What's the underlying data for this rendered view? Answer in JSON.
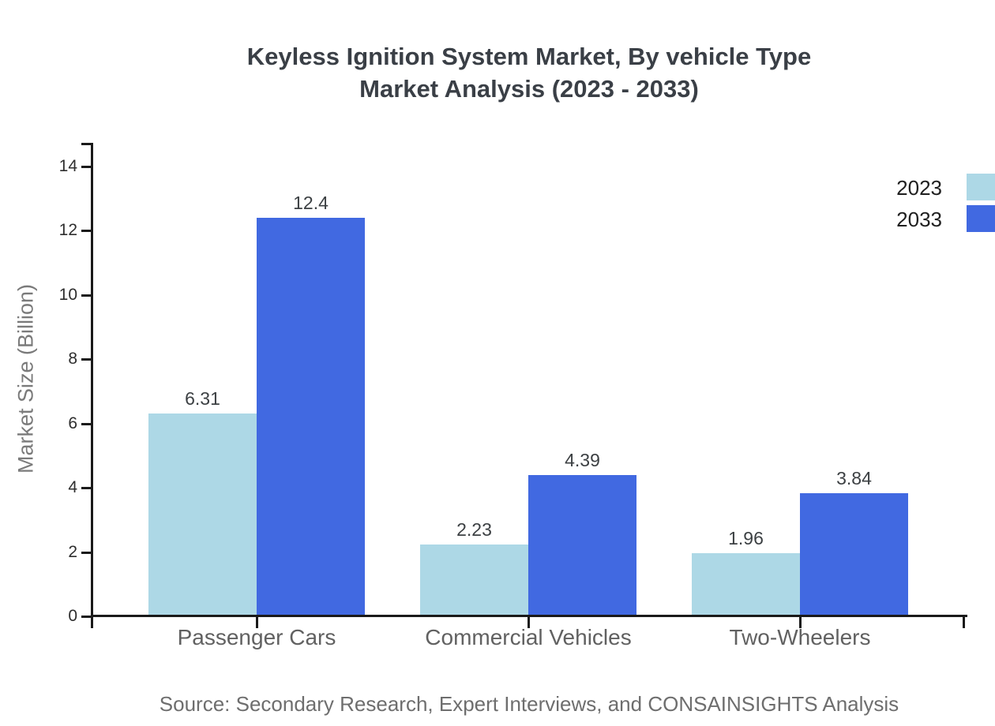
{
  "title": {
    "line1": "Keyless Ignition System Market, By vehicle Type",
    "line2": "Market Analysis (2023 - 2033)"
  },
  "source_note": "Source: Secondary Research, Expert Interviews, and CONSAINSIGHTS Analysis",
  "colors": {
    "series_2023": "#ADD8E6",
    "series_2033": "#4169E1",
    "axis": "#1a1a1a",
    "title_text": "#3a3f46",
    "muted_text": "#6e6e6e"
  },
  "chart_data": {
    "type": "bar",
    "title": "Keyless Ignition System Market, By vehicle Type — Market Analysis (2023 - 2033)",
    "categories": [
      "Passenger Cars",
      "Commercial Vehicles",
      "Two-Wheelers"
    ],
    "series": [
      {
        "name": "2023",
        "color": "#ADD8E6",
        "values": [
          6.31,
          2.23,
          1.96
        ],
        "value_labels": [
          "6.31",
          "2.23",
          "1.96"
        ]
      },
      {
        "name": "2033",
        "color": "#4169E1",
        "values": [
          12.4,
          4.39,
          3.84
        ],
        "value_labels": [
          "12.4",
          "4.39",
          "3.84"
        ]
      }
    ],
    "xlabel": "",
    "ylabel": "Market Size (Billion)",
    "ylim": [
      0,
      15
    ],
    "yticks": [
      0,
      2,
      4,
      6,
      8,
      10,
      12,
      14
    ],
    "grid": false,
    "legend_position": "top-right",
    "bar_value_labels_shown": true
  }
}
